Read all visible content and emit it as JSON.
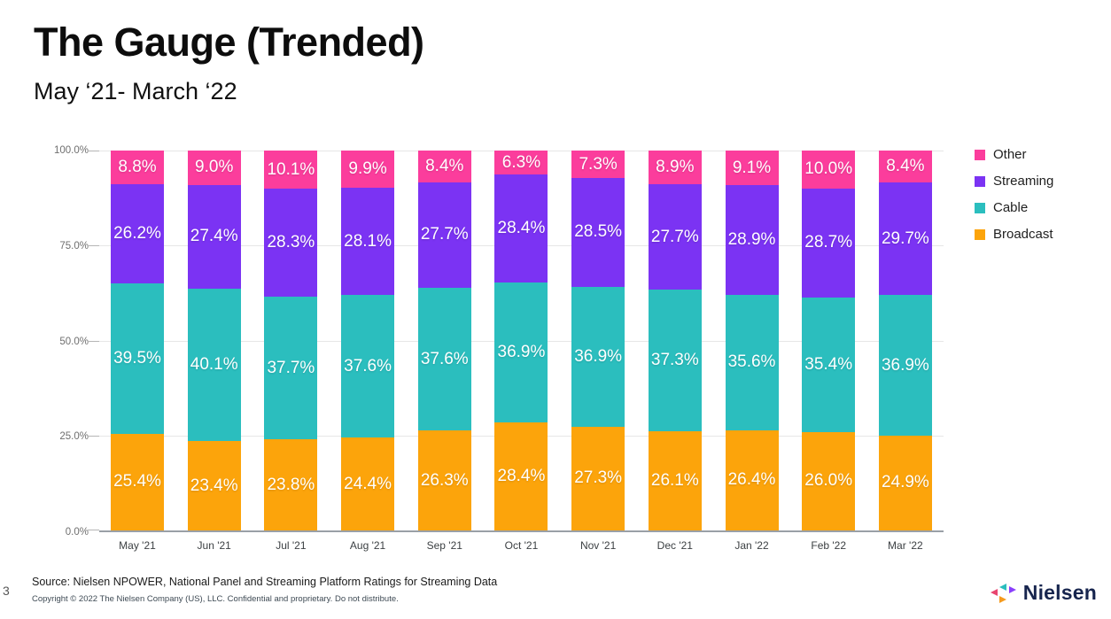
{
  "page": {
    "number": "3"
  },
  "chart_data": {
    "type": "bar",
    "stacked": true,
    "title": "The Gauge (Trended)",
    "subtitle": "May ‘21- March ‘22",
    "categories": [
      "May '21",
      "Jun '21",
      "Jul '21",
      "Aug '21",
      "Sep '21",
      "Oct '21",
      "Nov '21",
      "Dec '21",
      "Jan '22",
      "Feb '22",
      "Mar '22"
    ],
    "series": [
      {
        "name": "Other",
        "color": "#fb3d9c",
        "values": [
          8.8,
          9.0,
          10.1,
          9.9,
          8.4,
          6.3,
          7.3,
          8.9,
          9.1,
          10.0,
          8.4
        ]
      },
      {
        "name": "Streaming",
        "color": "#7b33f3",
        "values": [
          26.2,
          27.4,
          28.3,
          28.1,
          27.7,
          28.4,
          28.5,
          27.7,
          28.9,
          28.7,
          29.7
        ]
      },
      {
        "name": "Cable",
        "color": "#2bbebe",
        "values": [
          39.5,
          40.1,
          37.7,
          37.6,
          37.6,
          36.9,
          36.9,
          37.3,
          35.6,
          35.4,
          36.9
        ]
      },
      {
        "name": "Broadcast",
        "color": "#fca40b",
        "values": [
          25.4,
          23.4,
          23.8,
          24.4,
          26.3,
          28.4,
          27.3,
          26.1,
          26.4,
          26.0,
          24.9
        ]
      }
    ],
    "legend": [
      "Other",
      "Streaming",
      "Cable",
      "Broadcast"
    ],
    "legend_position": "right",
    "y_ticks": [
      "100.0%",
      "75.0%",
      "50.0%",
      "25.0%",
      "0.0%"
    ],
    "ylim": [
      0,
      100
    ],
    "grid": true,
    "value_decimals": 1,
    "value_suffix": "%"
  },
  "footer": {
    "source": "Source: Nielsen NPOWER, National Panel and Streaming Platform Ratings for Streaming Data",
    "copyright": "Copyright © 2022 The Nielsen Company (US), LLC. Confidential and proprietary. Do not distribute."
  },
  "branding": {
    "logo_text": "Nielsen"
  }
}
